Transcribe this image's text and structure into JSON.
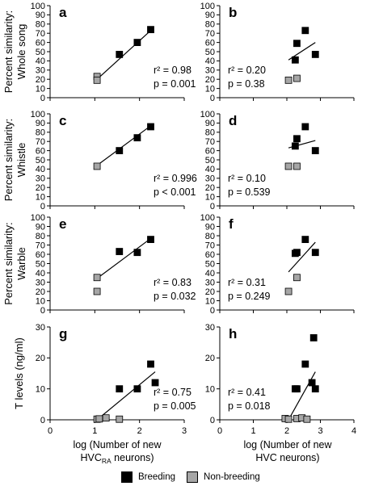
{
  "legend": {
    "breeding_label": "Breeding",
    "nonbreeding_label": "Non-breeding",
    "breeding_color": "#000000",
    "nonbreeding_color": "#a6a6a6"
  },
  "xlabels": {
    "left_line1": "log (Number of new",
    "left_line2_main": "HVC",
    "left_line2_sub": "RA",
    "left_line2_rest": " neurons)",
    "right_line1": "log (Number of new",
    "right_line2": "HVC neurons)"
  },
  "row_labels": [
    {
      "line1": "Percent similarity:",
      "line2": "Whole song"
    },
    {
      "line1": "Percent similarity:",
      "line2": "Whistle"
    },
    {
      "line1": "Percent similarity:",
      "line2": "Warble"
    },
    {
      "line1": "T levels (ng/ml)",
      "line2": ""
    }
  ],
  "chart_data": [
    {
      "panel": "a",
      "type": "scatter",
      "ylim": [
        0,
        100
      ],
      "yticks": [
        0,
        10,
        20,
        30,
        40,
        50,
        60,
        70,
        80,
        90,
        100
      ],
      "xlim": [
        0,
        3
      ],
      "xticks": [],
      "breeding": [
        [
          1.55,
          47
        ],
        [
          1.95,
          60
        ],
        [
          2.25,
          74
        ]
      ],
      "nonbreeding": [
        [
          1.05,
          23
        ],
        [
          1.05,
          19
        ]
      ],
      "fit": [
        [
          1.05,
          20
        ],
        [
          2.25,
          73
        ]
      ],
      "stats": [
        "r² = 0.98",
        "p = 0.001"
      ]
    },
    {
      "panel": "b",
      "type": "scatter",
      "ylim": [
        0,
        100
      ],
      "yticks": [
        0,
        10,
        20,
        30,
        40,
        50,
        60,
        70,
        80,
        90,
        100
      ],
      "xlim": [
        0,
        4
      ],
      "xticks": [],
      "breeding": [
        [
          2.25,
          41
        ],
        [
          2.3,
          59
        ],
        [
          2.55,
          73
        ],
        [
          2.85,
          47
        ]
      ],
      "nonbreeding": [
        [
          2.05,
          19
        ],
        [
          2.3,
          21
        ]
      ],
      "fit": [
        [
          2.05,
          41
        ],
        [
          2.85,
          60
        ]
      ],
      "stats": [
        "r² = 0.20",
        "p = 0.38"
      ]
    },
    {
      "panel": "c",
      "type": "scatter",
      "ylim": [
        0,
        100
      ],
      "yticks": [
        0,
        10,
        20,
        30,
        40,
        50,
        60,
        70,
        80,
        90,
        100
      ],
      "xlim": [
        0,
        3
      ],
      "xticks": [],
      "breeding": [
        [
          1.55,
          60
        ],
        [
          1.95,
          74
        ],
        [
          2.25,
          86
        ]
      ],
      "nonbreeding": [
        [
          1.05,
          43
        ]
      ],
      "fit": [
        [
          1.05,
          44
        ],
        [
          2.25,
          87
        ]
      ],
      "stats": [
        "r² = 0.996",
        "p < 0.001"
      ]
    },
    {
      "panel": "d",
      "type": "scatter",
      "ylim": [
        0,
        100
      ],
      "yticks": [
        0,
        10,
        20,
        30,
        40,
        50,
        60,
        70,
        80,
        90,
        100
      ],
      "xlim": [
        0,
        4
      ],
      "xticks": [],
      "breeding": [
        [
          2.25,
          65
        ],
        [
          2.3,
          73
        ],
        [
          2.55,
          86
        ],
        [
          2.85,
          60
        ]
      ],
      "nonbreeding": [
        [
          2.05,
          43
        ],
        [
          2.3,
          43
        ]
      ],
      "fit": [
        [
          2.05,
          63
        ],
        [
          2.85,
          71
        ]
      ],
      "stats": [
        "r² = 0.10",
        "p = 0.539"
      ]
    },
    {
      "panel": "e",
      "type": "scatter",
      "ylim": [
        0,
        100
      ],
      "yticks": [
        0,
        10,
        20,
        30,
        40,
        50,
        60,
        70,
        80,
        90,
        100
      ],
      "xlim": [
        0,
        3
      ],
      "xticks": [],
      "breeding": [
        [
          1.55,
          63
        ],
        [
          1.95,
          62
        ],
        [
          2.25,
          76
        ]
      ],
      "nonbreeding": [
        [
          1.05,
          35
        ],
        [
          1.05,
          20
        ]
      ],
      "fit": [
        [
          1.05,
          34
        ],
        [
          2.25,
          77
        ]
      ],
      "stats": [
        "r² = 0.83",
        "p = 0.032"
      ]
    },
    {
      "panel": "f",
      "type": "scatter",
      "ylim": [
        0,
        100
      ],
      "yticks": [
        0,
        10,
        20,
        30,
        40,
        50,
        60,
        70,
        80,
        90,
        100
      ],
      "xlim": [
        0,
        4
      ],
      "xticks": [],
      "breeding": [
        [
          2.25,
          61
        ],
        [
          2.3,
          62
        ],
        [
          2.55,
          76
        ],
        [
          2.85,
          62
        ]
      ],
      "nonbreeding": [
        [
          2.05,
          20
        ],
        [
          2.3,
          35
        ]
      ],
      "fit": [
        [
          2.05,
          41
        ],
        [
          2.85,
          73
        ]
      ],
      "stats": [
        "r² = 0.31",
        "p = 0.249"
      ]
    },
    {
      "panel": "g",
      "type": "scatter",
      "ylim": [
        0,
        30
      ],
      "yticks": [
        0,
        10,
        20,
        30
      ],
      "xlim": [
        0,
        3
      ],
      "xticks": [
        0,
        1,
        2,
        3
      ],
      "breeding": [
        [
          1.55,
          10
        ],
        [
          1.95,
          10
        ],
        [
          2.25,
          18
        ],
        [
          2.35,
          12
        ]
      ],
      "nonbreeding": [
        [
          1.05,
          0.2
        ],
        [
          1.1,
          0.3
        ],
        [
          1.25,
          0.6
        ],
        [
          1.55,
          0.2
        ]
      ],
      "fit": [
        [
          1.05,
          0
        ],
        [
          2.35,
          15.5
        ]
      ],
      "stats": [
        "r² = 0.75",
        "p = 0.005"
      ]
    },
    {
      "panel": "h",
      "type": "scatter",
      "ylim": [
        0,
        30
      ],
      "yticks": [
        0,
        10,
        20,
        30
      ],
      "xlim": [
        0,
        4
      ],
      "xticks": [
        0,
        1,
        2,
        3,
        4
      ],
      "breeding": [
        [
          2.25,
          10
        ],
        [
          2.3,
          10
        ],
        [
          2.55,
          18
        ],
        [
          2.75,
          12
        ],
        [
          2.8,
          26.5
        ],
        [
          2.85,
          10
        ]
      ],
      "nonbreeding": [
        [
          1.95,
          0.4
        ],
        [
          2.05,
          0.2
        ],
        [
          2.3,
          0.4
        ],
        [
          2.45,
          0.6
        ],
        [
          2.6,
          0.2
        ]
      ],
      "fit": [
        [
          2.05,
          0
        ],
        [
          2.85,
          15.5
        ]
      ],
      "stats": [
        "r² = 0.41",
        "p = 0.018"
      ]
    }
  ]
}
